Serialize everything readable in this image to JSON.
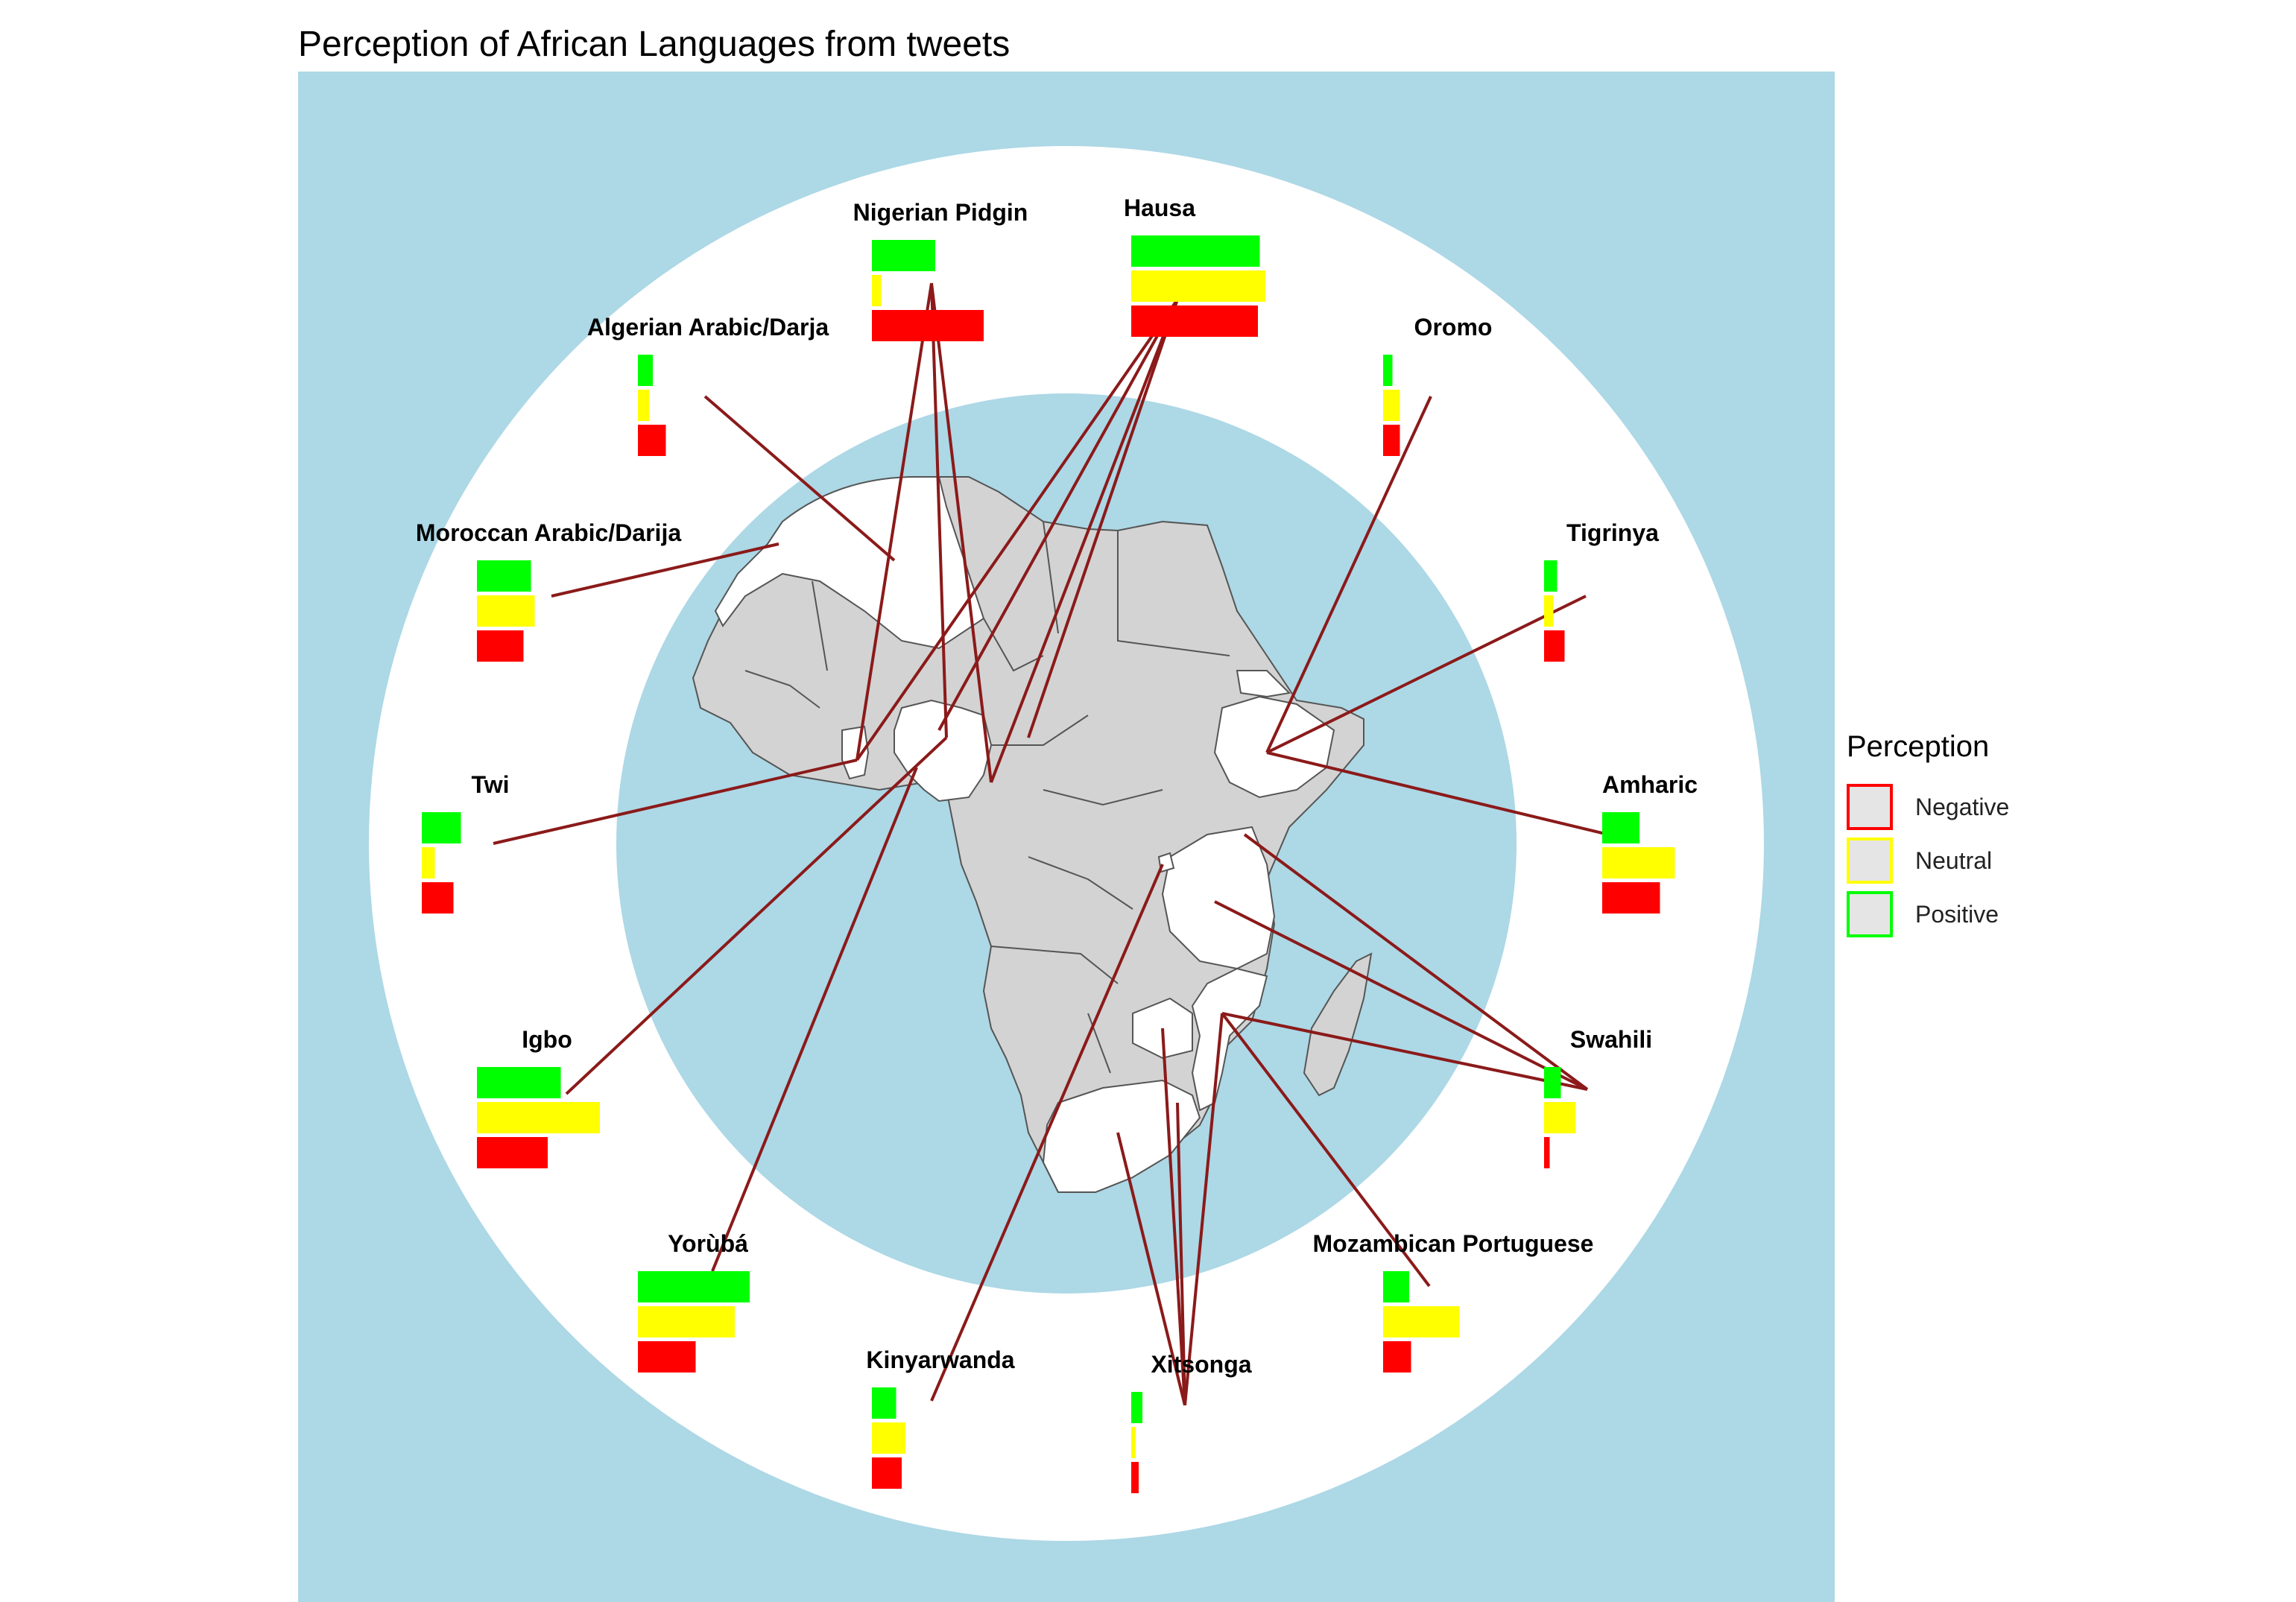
{
  "title": "Perception of African Languages from tweets",
  "legend": {
    "title": "Perception",
    "items": [
      {
        "label": "Negative",
        "color": "#FF0000"
      },
      {
        "label": "Neutral",
        "color": "#FFFF00"
      },
      {
        "label": "Positive",
        "color": "#00FF00"
      }
    ]
  },
  "colors": {
    "positive": "#00FF00",
    "neutral": "#FFFF00",
    "negative": "#FF0000",
    "ocean": "#ADD8E6",
    "ring": "#FFFFFF",
    "land": "#D3D3D3",
    "highlight_land": "#FFFFFF",
    "border": "#555555",
    "connector": "#8B1A1A"
  },
  "chart_data": {
    "type": "bar",
    "description_units": "relative share of tweets by perception (approximate)",
    "categories": [
      "Nigerian Pidgin",
      "Hausa",
      "Algerian Arabic/Darja",
      "Oromo",
      "Moroccan Arabic/Darija",
      "Tigrinya",
      "Twi",
      "Amharic",
      "Igbo",
      "Swahili",
      "Yorùbá",
      "Mozambican Portuguese",
      "Kinyarwanda",
      "Xitsonga"
    ],
    "series": [
      {
        "name": "Positive",
        "values": [
          0.34,
          0.69,
          0.08,
          0.05,
          0.29,
          0.07,
          0.21,
          0.2,
          0.45,
          0.09,
          0.6,
          0.14,
          0.13,
          0.06
        ]
      },
      {
        "name": "Neutral",
        "values": [
          0.05,
          0.72,
          0.06,
          0.09,
          0.31,
          0.05,
          0.07,
          0.39,
          0.66,
          0.17,
          0.52,
          0.41,
          0.18,
          0.02
        ]
      },
      {
        "name": "Negative",
        "values": [
          0.6,
          0.68,
          0.15,
          0.09,
          0.25,
          0.11,
          0.17,
          0.31,
          0.38,
          0.03,
          0.31,
          0.15,
          0.16,
          0.04
        ]
      }
    ],
    "xlabel": "",
    "ylabel": "",
    "legend_position": "right",
    "grid": false
  }
}
